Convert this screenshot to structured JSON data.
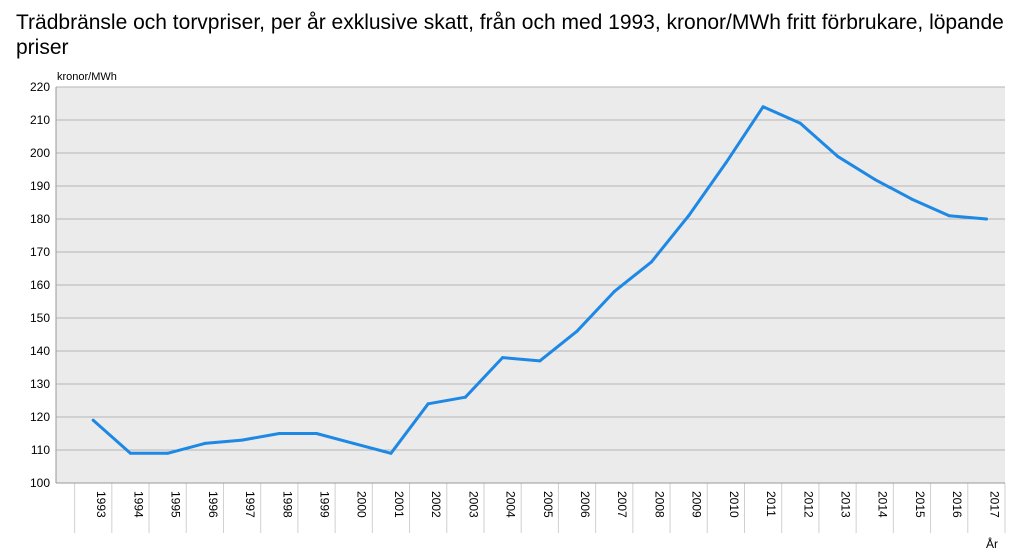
{
  "chart_data": {
    "type": "line",
    "title": "Trädbränsle och torvpriser, per år exklusive skatt, från och med 1993, kronor/MWh fritt förbrukare, löpande priser",
    "ylabel": "kronor/MWh",
    "xlabel": "År",
    "ylim": [
      100,
      220
    ],
    "yticks": [
      100,
      110,
      120,
      130,
      140,
      150,
      160,
      170,
      180,
      190,
      200,
      210,
      220
    ],
    "grid": true,
    "legend": "none",
    "categories": [
      "1993",
      "1994",
      "1995",
      "1996",
      "1997",
      "1998",
      "1999",
      "2000",
      "2001",
      "2002",
      "2003",
      "2004",
      "2005",
      "2006",
      "2007",
      "2008",
      "2009",
      "2010",
      "2011",
      "2012",
      "2013",
      "2014",
      "2015",
      "2016",
      "2017"
    ],
    "series": [
      {
        "color": "#1e88e5",
        "values": [
          119,
          109,
          109,
          112,
          113,
          115,
          115,
          112,
          109,
          124,
          126,
          138,
          137,
          146,
          158,
          167,
          181,
          197,
          214,
          209,
          199,
          192,
          186,
          181,
          180
        ]
      }
    ]
  }
}
